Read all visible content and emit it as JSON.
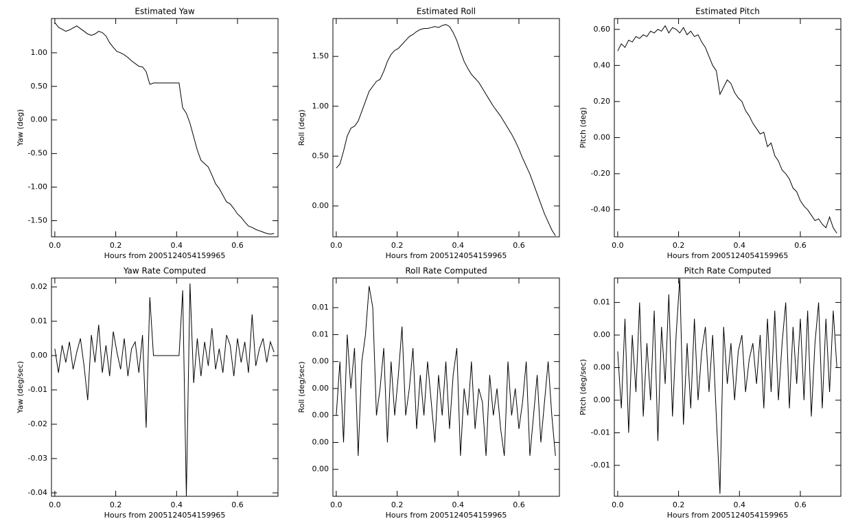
{
  "chart_data": [
    {
      "type": "line",
      "title": "Estimated Yaw",
      "xlabel": "Hours from 2005124054159965",
      "ylabel": "Yaw (deg)",
      "color": "#000000",
      "x": [
        0,
        0.012,
        0.024,
        0.036,
        0.048,
        0.06,
        0.072,
        0.084,
        0.096,
        0.108,
        0.12,
        0.132,
        0.144,
        0.156,
        0.168,
        0.18,
        0.192,
        0.204,
        0.216,
        0.228,
        0.24,
        0.252,
        0.264,
        0.276,
        0.288,
        0.3,
        0.312,
        0.324,
        0.336,
        0.348,
        0.36,
        0.372,
        0.384,
        0.396,
        0.408,
        0.42,
        0.432,
        0.444,
        0.456,
        0.468,
        0.48,
        0.492,
        0.504,
        0.516,
        0.528,
        0.54,
        0.552,
        0.564,
        0.576,
        0.588,
        0.6,
        0.612,
        0.624,
        0.636,
        0.648,
        0.66,
        0.672,
        0.684,
        0.696,
        0.708,
        0.72
      ],
      "values": [
        1.45,
        1.38,
        1.35,
        1.32,
        1.34,
        1.37,
        1.4,
        1.36,
        1.32,
        1.28,
        1.26,
        1.28,
        1.32,
        1.3,
        1.25,
        1.15,
        1.08,
        1.02,
        1.0,
        0.97,
        0.93,
        0.88,
        0.84,
        0.8,
        0.79,
        0.72,
        0.53,
        0.55,
        0.55,
        0.55,
        0.55,
        0.55,
        0.55,
        0.55,
        0.55,
        0.18,
        0.1,
        -0.05,
        -0.25,
        -0.45,
        -0.6,
        -0.65,
        -0.7,
        -0.82,
        -0.95,
        -1.02,
        -1.12,
        -1.22,
        -1.25,
        -1.32,
        -1.4,
        -1.45,
        -1.52,
        -1.58,
        -1.6,
        -1.63,
        -1.65,
        -1.67,
        -1.69,
        -1.7,
        -1.69
      ],
      "xlim": [
        -0.011,
        0.733
      ],
      "xticks": [
        {
          "value": 0,
          "label": "0.0"
        },
        0.2,
        0.4,
        0.6
      ],
      "ylim": [
        -1.74,
        1.51
      ],
      "yticks": [
        {
          "value": -1.5,
          "label": "-1.50"
        },
        {
          "value": -1,
          "label": "-1.00"
        },
        {
          "value": -0.5,
          "label": "-0.50"
        },
        {
          "value": 0,
          "label": "0.00"
        },
        {
          "value": 0.5,
          "label": "0.50"
        },
        {
          "value": 1,
          "label": "1.00"
        }
      ]
    },
    {
      "type": "line",
      "title": "Estimated Roll",
      "xlabel": "Hours from 2005124054159965",
      "ylabel": "Roll (deg)",
      "color": "#000000",
      "x": [
        0,
        0.012,
        0.024,
        0.036,
        0.048,
        0.06,
        0.072,
        0.084,
        0.096,
        0.108,
        0.12,
        0.132,
        0.144,
        0.156,
        0.168,
        0.18,
        0.192,
        0.204,
        0.216,
        0.228,
        0.24,
        0.252,
        0.264,
        0.276,
        0.288,
        0.3,
        0.312,
        0.324,
        0.336,
        0.348,
        0.36,
        0.372,
        0.384,
        0.396,
        0.408,
        0.42,
        0.432,
        0.444,
        0.456,
        0.468,
        0.48,
        0.492,
        0.504,
        0.516,
        0.528,
        0.54,
        0.552,
        0.564,
        0.576,
        0.588,
        0.6,
        0.612,
        0.624,
        0.636,
        0.648,
        0.66,
        0.672,
        0.684,
        0.696,
        0.708,
        0.72
      ],
      "values": [
        0.38,
        0.42,
        0.55,
        0.7,
        0.78,
        0.8,
        0.85,
        0.95,
        1.05,
        1.15,
        1.2,
        1.25,
        1.27,
        1.35,
        1.45,
        1.52,
        1.56,
        1.58,
        1.62,
        1.66,
        1.7,
        1.72,
        1.75,
        1.77,
        1.78,
        1.78,
        1.79,
        1.8,
        1.79,
        1.81,
        1.82,
        1.8,
        1.74,
        1.66,
        1.55,
        1.45,
        1.38,
        1.32,
        1.28,
        1.24,
        1.18,
        1.12,
        1.06,
        1.0,
        0.95,
        0.9,
        0.84,
        0.78,
        0.72,
        0.65,
        0.57,
        0.48,
        0.4,
        0.32,
        0.22,
        0.12,
        0.02,
        -0.08,
        -0.16,
        -0.24,
        -0.3
      ],
      "xlim": [
        -0.011,
        0.733
      ],
      "xticks": [
        {
          "value": 0,
          "label": "0.0"
        },
        0.2,
        0.4,
        0.6
      ],
      "ylim": [
        -0.31,
        1.88
      ],
      "yticks": [
        {
          "value": 0,
          "label": "0.00"
        },
        {
          "value": 0.5,
          "label": "0.50"
        },
        {
          "value": 1,
          "label": "1.00"
        },
        {
          "value": 1.5,
          "label": "1.50"
        }
      ]
    },
    {
      "type": "line",
      "title": "Estimated Pitch",
      "xlabel": "Hours from 2005124054159965",
      "ylabel": "Pitch (deg)",
      "color": "#000000",
      "x": [
        0,
        0.012,
        0.024,
        0.036,
        0.048,
        0.06,
        0.072,
        0.084,
        0.096,
        0.108,
        0.12,
        0.132,
        0.144,
        0.156,
        0.168,
        0.18,
        0.192,
        0.204,
        0.216,
        0.228,
        0.24,
        0.252,
        0.264,
        0.276,
        0.288,
        0.3,
        0.312,
        0.324,
        0.336,
        0.348,
        0.36,
        0.372,
        0.384,
        0.396,
        0.408,
        0.42,
        0.432,
        0.444,
        0.456,
        0.468,
        0.48,
        0.492,
        0.504,
        0.516,
        0.528,
        0.54,
        0.552,
        0.564,
        0.576,
        0.588,
        0.6,
        0.612,
        0.624,
        0.636,
        0.648,
        0.66,
        0.672,
        0.684,
        0.696,
        0.708,
        0.72
      ],
      "values": [
        0.48,
        0.52,
        0.5,
        0.54,
        0.53,
        0.56,
        0.55,
        0.57,
        0.56,
        0.59,
        0.58,
        0.6,
        0.59,
        0.62,
        0.58,
        0.61,
        0.6,
        0.58,
        0.61,
        0.57,
        0.59,
        0.56,
        0.57,
        0.53,
        0.5,
        0.45,
        0.4,
        0.37,
        0.24,
        0.28,
        0.32,
        0.3,
        0.25,
        0.22,
        0.2,
        0.15,
        0.12,
        0.08,
        0.05,
        0.02,
        0.03,
        -0.05,
        -0.03,
        -0.1,
        -0.13,
        -0.18,
        -0.2,
        -0.23,
        -0.28,
        -0.3,
        -0.35,
        -0.38,
        -0.4,
        -0.43,
        -0.46,
        -0.45,
        -0.48,
        -0.5,
        -0.44,
        -0.5,
        -0.53
      ],
      "xlim": [
        -0.011,
        0.733
      ],
      "xticks": [
        {
          "value": 0,
          "label": "0.0"
        },
        0.2,
        0.4,
        0.6
      ],
      "ylim": [
        -0.55,
        0.66
      ],
      "yticks": [
        {
          "value": -0.4,
          "label": "-0.40"
        },
        {
          "value": -0.2,
          "label": "-0.20"
        },
        {
          "value": 0,
          "label": "0.00"
        },
        {
          "value": 0.2,
          "label": "0.20"
        },
        {
          "value": 0.4,
          "label": "0.40"
        },
        {
          "value": 0.6,
          "label": "0.60"
        }
      ]
    },
    {
      "type": "line",
      "title": "Yaw Rate Computed",
      "xlabel": "Hours from 2005124054159965",
      "ylabel": "Yaw (deg/sec)",
      "color": "#000000",
      "x": [
        0,
        0.012,
        0.024,
        0.036,
        0.048,
        0.06,
        0.072,
        0.084,
        0.096,
        0.108,
        0.12,
        0.132,
        0.144,
        0.156,
        0.168,
        0.18,
        0.192,
        0.204,
        0.216,
        0.228,
        0.24,
        0.252,
        0.264,
        0.276,
        0.288,
        0.3,
        0.312,
        0.324,
        0.336,
        0.348,
        0.36,
        0.372,
        0.384,
        0.396,
        0.408,
        0.42,
        0.432,
        0.444,
        0.456,
        0.468,
        0.48,
        0.492,
        0.504,
        0.516,
        0.528,
        0.54,
        0.552,
        0.564,
        0.576,
        0.588,
        0.6,
        0.612,
        0.624,
        0.636,
        0.648,
        0.66,
        0.672,
        0.684,
        0.696,
        0.708,
        0.72
      ],
      "values": [
        0.002,
        -0.005,
        0.003,
        -0.002,
        0.004,
        -0.004,
        0.001,
        0.005,
        -0.003,
        -0.013,
        0.006,
        -0.002,
        0.009,
        -0.005,
        0.003,
        -0.006,
        0.007,
        0.001,
        -0.004,
        0.005,
        -0.006,
        0.002,
        0.004,
        -0.005,
        0.006,
        -0.021,
        0.017,
        0,
        0,
        0,
        0,
        0,
        0,
        0,
        0,
        0.019,
        -0.041,
        0.021,
        -0.008,
        0.005,
        -0.006,
        0.004,
        -0.003,
        0.008,
        -0.004,
        0.002,
        -0.005,
        0.006,
        0.003,
        -0.006,
        0.005,
        -0.002,
        0.004,
        -0.005,
        0.012,
        -0.003,
        0.002,
        0.005,
        -0.002,
        0.004,
        0.001
      ],
      "xlim": [
        -0.011,
        0.733
      ],
      "xticks": [
        {
          "value": 0,
          "label": "0.0"
        },
        0.2,
        0.4,
        0.6
      ],
      "ylim": [
        -0.041,
        0.0226
      ],
      "yticks": [
        -0.04,
        -0.03,
        -0.02,
        -0.01,
        {
          "value": 0,
          "label": "0.00"
        },
        0.01,
        0.02
      ]
    },
    {
      "type": "line",
      "title": "Roll Rate Computed",
      "xlabel": "Hours from 2005124054159965",
      "ylabel": "Roll (deg/sec)",
      "color": "#000000",
      "x": [
        0,
        0.012,
        0.024,
        0.036,
        0.048,
        0.06,
        0.072,
        0.084,
        0.096,
        0.108,
        0.12,
        0.132,
        0.144,
        0.156,
        0.168,
        0.18,
        0.192,
        0.204,
        0.216,
        0.228,
        0.24,
        0.252,
        0.264,
        0.276,
        0.288,
        0.3,
        0.312,
        0.324,
        0.336,
        0.348,
        0.36,
        0.372,
        0.384,
        0.396,
        0.408,
        0.42,
        0.432,
        0.444,
        0.456,
        0.468,
        0.48,
        0.492,
        0.504,
        0.516,
        0.528,
        0.54,
        0.552,
        0.564,
        0.576,
        0.588,
        0.6,
        0.612,
        0.624,
        0.636,
        0.648,
        0.66,
        0.672,
        0.684,
        0.696,
        0.708,
        0.72
      ],
      "values": [
        0.002,
        0.004,
        0.001,
        0.005,
        0.003,
        0.0045,
        0.0005,
        0.004,
        0.005,
        0.0068,
        0.006,
        0.002,
        0.003,
        0.0045,
        0.001,
        0.004,
        0.002,
        0.0035,
        0.0053,
        0.002,
        0.003,
        0.0045,
        0.0015,
        0.0035,
        0.002,
        0.004,
        0.0025,
        0.001,
        0.0035,
        0.002,
        0.004,
        0.0015,
        0.0035,
        0.0045,
        0.0005,
        0.003,
        0.002,
        0.004,
        0.0015,
        0.003,
        0.0025,
        0.0005,
        0.0035,
        0.002,
        0.003,
        0.0015,
        0.0005,
        0.004,
        0.002,
        0.003,
        0.0015,
        0.0025,
        0.004,
        0.0005,
        0.002,
        0.0035,
        0.001,
        0.0025,
        0.004,
        0.002,
        0.0005
      ],
      "xlim": [
        -0.011,
        0.733
      ],
      "xticks": [
        {
          "value": 0,
          "label": "0.0"
        },
        0.2,
        0.4,
        0.6
      ],
      "ylim": [
        -0.001,
        0.0071
      ],
      "yticks": [
        {
          "value": 0,
          "label": "0.00"
        },
        {
          "value": 0.001,
          "label": "0.00"
        },
        {
          "value": 0.002,
          "label": "0.00"
        },
        {
          "value": 0.003,
          "label": "0.00"
        },
        {
          "value": 0.004,
          "label": "0.00"
        },
        {
          "value": 0.005,
          "label": "0.01"
        },
        {
          "value": 0.006,
          "label": "0.01"
        }
      ]
    },
    {
      "type": "line",
      "title": "Pitch Rate Computed",
      "xlabel": "Hours from 2005124054159965",
      "ylabel": "Pitch (deg/sec)",
      "color": "#000000",
      "x": [
        0,
        0.012,
        0.024,
        0.036,
        0.048,
        0.06,
        0.072,
        0.084,
        0.096,
        0.108,
        0.12,
        0.132,
        0.144,
        0.156,
        0.168,
        0.18,
        0.192,
        0.204,
        0.216,
        0.228,
        0.24,
        0.252,
        0.264,
        0.276,
        0.288,
        0.3,
        0.312,
        0.324,
        0.336,
        0.348,
        0.36,
        0.372,
        0.384,
        0.396,
        0.408,
        0.42,
        0.432,
        0.444,
        0.456,
        0.468,
        0.48,
        0.492,
        0.504,
        0.516,
        0.528,
        0.54,
        0.552,
        0.564,
        0.576,
        0.588,
        0.6,
        0.612,
        0.624,
        0.636,
        0.648,
        0.66,
        0.672,
        0.684,
        0.696,
        0.708,
        0.72
      ],
      "values": [
        0.002,
        -0.005,
        0.006,
        -0.008,
        0.004,
        -0.003,
        0.008,
        -0.006,
        0.003,
        -0.004,
        0.007,
        -0.009,
        0.005,
        -0.002,
        0.009,
        -0.006,
        0.004,
        0.011,
        -0.007,
        0.003,
        -0.005,
        0.006,
        -0.004,
        0.002,
        0.005,
        -0.003,
        0.004,
        -0.006,
        -0.0155,
        0.005,
        -0.002,
        0.003,
        -0.004,
        0.002,
        0.004,
        -0.003,
        0.001,
        0.003,
        -0.002,
        0.004,
        -0.005,
        0.006,
        -0.003,
        0.007,
        -0.004,
        0.003,
        0.008,
        -0.005,
        0.005,
        -0.002,
        0.006,
        -0.004,
        0.007,
        -0.006,
        0.003,
        0.008,
        -0.005,
        0.006,
        -0.003,
        0.007,
        0
      ],
      "xlim": [
        -0.011,
        0.733
      ],
      "xticks": [
        {
          "value": 0,
          "label": "0.0"
        },
        0.2,
        0.4,
        0.6
      ],
      "ylim": [
        -0.0158,
        0.011
      ],
      "yticks": [
        {
          "value": -0.012,
          "label": "-0.01"
        },
        {
          "value": -0.008,
          "label": "-0.01"
        },
        {
          "value": -0.004,
          "label": "0.00"
        },
        {
          "value": 0,
          "label": "0.00"
        },
        {
          "value": 0.004,
          "label": "0.00"
        },
        {
          "value": 0.008,
          "label": "0.01"
        }
      ]
    }
  ]
}
